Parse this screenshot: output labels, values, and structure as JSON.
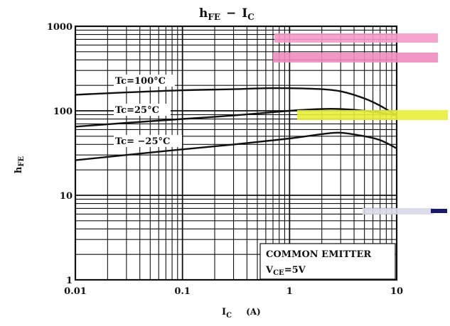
{
  "chart_data": {
    "type": "line",
    "title": {
      "main": "h",
      "main_sub": "FE",
      "dash": "−",
      "right": "I",
      "right_sub": "C"
    },
    "xlabel": {
      "main": "I",
      "sub": "C",
      "unit": "(A)"
    },
    "ylabel": {
      "main": "h",
      "sub": "FE"
    },
    "x_scale": "log",
    "y_scale": "log",
    "xlim": [
      0.01,
      10
    ],
    "ylim": [
      1,
      1000
    ],
    "x_ticks": [
      "0.01",
      "0.1",
      "1",
      "10"
    ],
    "y_ticks": [
      "1000",
      "100",
      "10",
      "1"
    ],
    "grid": true,
    "series": [
      {
        "name": "Tc=100°C",
        "x": [
          0.01,
          0.03,
          0.1,
          0.3,
          0.6,
          1,
          2,
          3,
          5,
          7,
          9,
          10
        ],
        "y": [
          155,
          165,
          175,
          180,
          185,
          185,
          180,
          170,
          140,
          115,
          95,
          90
        ]
      },
      {
        "name": "Tc=25°C",
        "x": [
          0.01,
          0.03,
          0.1,
          0.3,
          1,
          2,
          3,
          5,
          7,
          9,
          10
        ],
        "y": [
          65,
          72,
          80,
          88,
          100,
          105,
          105,
          100,
          95,
          90,
          88
        ]
      },
      {
        "name": "Tc= −25°C",
        "x": [
          0.01,
          0.03,
          0.1,
          0.3,
          1,
          2,
          3,
          5,
          7,
          10
        ],
        "y": [
          26,
          30,
          35,
          40,
          47,
          53,
          55,
          50,
          45,
          36
        ]
      }
    ],
    "annotation": {
      "line1": "COMMON EMITTER",
      "line2_main": "V",
      "line2_sub": "CE",
      "line2_value": "=5V"
    }
  }
}
